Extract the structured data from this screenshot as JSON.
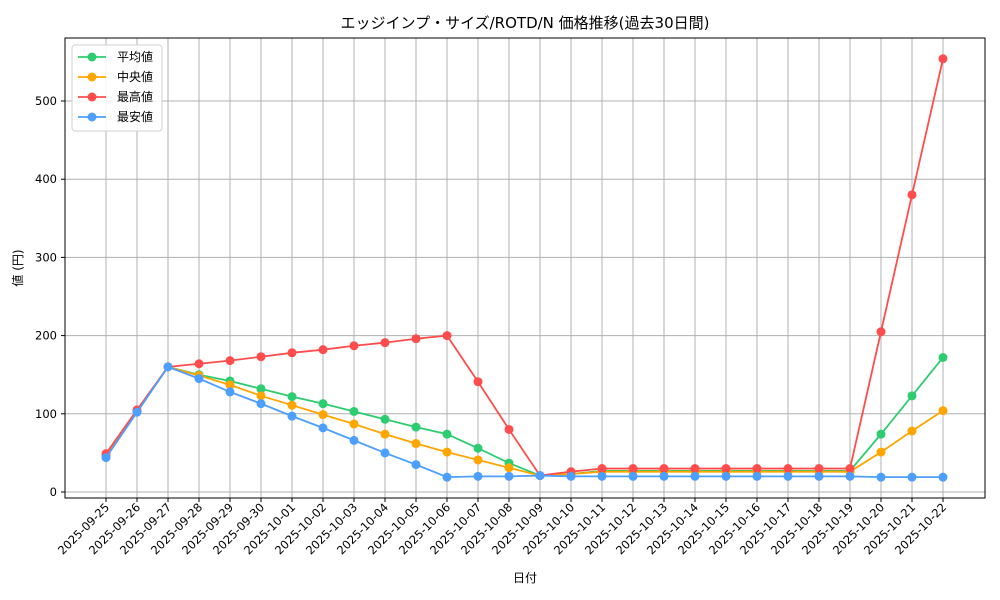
{
  "chart_data": {
    "type": "line",
    "title": "エッジインプ・サイズ/ROTD/N 価格推移(過去30日間)",
    "xlabel": "日付",
    "ylabel": "値 (円)",
    "ylim": [
      -6,
      580
    ],
    "yticks": [
      0,
      100,
      200,
      300,
      400,
      500
    ],
    "grid": true,
    "legend_position": "upper left",
    "x": [
      "2025-09-25",
      "2025-09-26",
      "2025-09-27",
      "2025-09-28",
      "2025-09-29",
      "2025-09-30",
      "2025-10-01",
      "2025-10-02",
      "2025-10-03",
      "2025-10-04",
      "2025-10-05",
      "2025-10-06",
      "2025-10-07",
      "2025-10-08",
      "2025-10-09",
      "2025-10-10",
      "2025-10-11",
      "2025-10-12",
      "2025-10-13",
      "2025-10-14",
      "2025-10-15",
      "2025-10-16",
      "2025-10-17",
      "2025-10-18",
      "2025-10-19",
      "2025-10-20",
      "2025-10-21",
      "2025-10-22"
    ],
    "series": [
      {
        "name": "平均値",
        "color": "#2ecc71",
        "values": [
          46,
          104,
          160,
          150,
          142,
          132,
          122,
          113,
          103,
          93,
          83,
          74,
          56,
          37,
          21,
          23,
          27,
          27,
          27,
          27,
          27,
          27,
          27,
          27,
          27,
          74,
          123,
          172
        ]
      },
      {
        "name": "中央値",
        "color": "#ffa500",
        "values": [
          46,
          104,
          160,
          149,
          137,
          123,
          111,
          99,
          87,
          74,
          62,
          51,
          41,
          31,
          21,
          23,
          26,
          26,
          26,
          26,
          26,
          26,
          26,
          26,
          26,
          51,
          78,
          104
        ]
      },
      {
        "name": "最高値",
        "color": "#ff4d4d",
        "values": [
          49,
          105,
          160,
          164,
          168,
          173,
          178,
          182,
          187,
          191,
          196,
          200,
          141,
          80,
          21,
          26,
          30,
          30,
          30,
          30,
          30,
          30,
          30,
          30,
          30,
          205,
          380,
          554
        ]
      },
      {
        "name": "最安値",
        "color": "#4d9fff",
        "values": [
          44,
          102,
          160,
          145,
          128,
          113,
          97,
          82,
          66,
          50,
          35,
          19,
          20,
          20,
          21,
          20,
          20,
          20,
          20,
          20,
          20,
          20,
          20,
          20,
          20,
          19,
          19,
          19
        ]
      }
    ]
  }
}
